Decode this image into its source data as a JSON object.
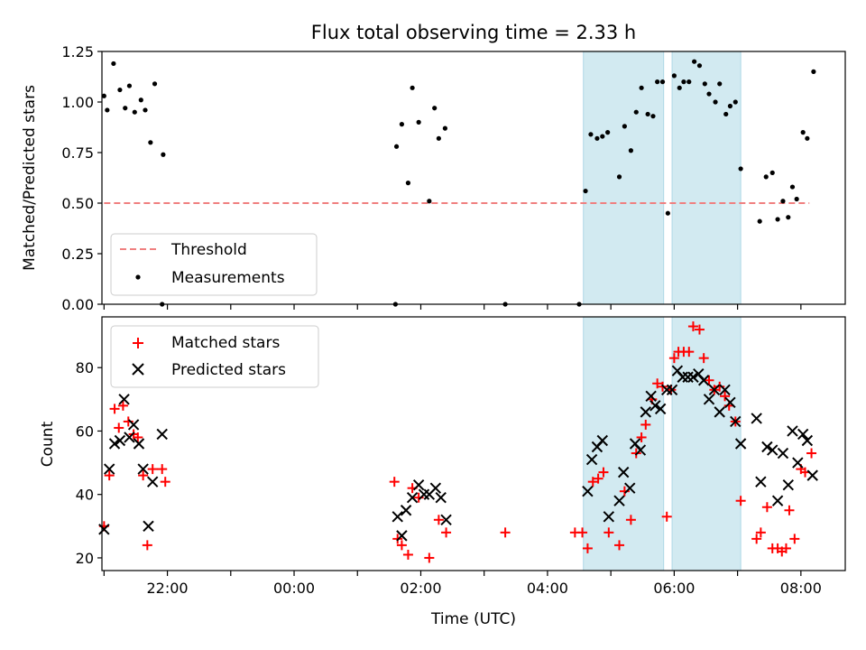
{
  "chart_data": [
    {
      "type": "scatter",
      "title": "Flux total observing time = 2.33 h",
      "xlabel": "",
      "ylabel": "Matched/Predicted stars",
      "xlim": [
        "20:58",
        "08:42"
      ],
      "ylim": [
        0,
        1.25
      ],
      "yticks": [
        0.0,
        0.25,
        0.5,
        0.75,
        1.0,
        1.25
      ],
      "ytick_labels": [
        "0.00",
        "0.25",
        "0.50",
        "0.75",
        "1.00",
        "1.25"
      ],
      "grid": false,
      "legend_position": "lower-left",
      "shaded_intervals": [
        [
          "04:34",
          "05:50"
        ],
        [
          "05:58",
          "07:03"
        ]
      ],
      "threshold_line": {
        "name": "Threshold",
        "y": 0.5,
        "x_start": "21:00",
        "x_end": "08:08",
        "color": "#f08080",
        "style": "dashed"
      },
      "series": [
        {
          "name": "Measurements",
          "color": "#000000",
          "points": [
            [
              "21:00",
              1.03
            ],
            [
              "21:03",
              0.96
            ],
            [
              "21:09",
              1.19
            ],
            [
              "21:15",
              1.06
            ],
            [
              "21:20",
              0.97
            ],
            [
              "21:24",
              1.08
            ],
            [
              "21:29",
              0.95
            ],
            [
              "21:35",
              1.01
            ],
            [
              "21:39",
              0.96
            ],
            [
              "21:44",
              0.8
            ],
            [
              "21:48",
              1.09
            ],
            [
              "21:56",
              0.74
            ],
            [
              "21:55",
              0.0
            ],
            [
              "01:36",
              0.0
            ],
            [
              "01:37",
              0.78
            ],
            [
              "01:42",
              0.89
            ],
            [
              "01:48",
              0.6
            ],
            [
              "01:52",
              1.07
            ],
            [
              "01:58",
              0.9
            ],
            [
              "02:08",
              0.51
            ],
            [
              "02:13",
              0.97
            ],
            [
              "02:17",
              0.82
            ],
            [
              "02:23",
              0.87
            ],
            [
              "03:20",
              0.0
            ],
            [
              "04:30",
              0.0
            ],
            [
              "04:36",
              0.56
            ],
            [
              "04:41",
              0.84
            ],
            [
              "04:47",
              0.82
            ],
            [
              "04:52",
              0.83
            ],
            [
              "04:57",
              0.85
            ],
            [
              "05:08",
              0.63
            ],
            [
              "05:13",
              0.88
            ],
            [
              "05:19",
              0.76
            ],
            [
              "05:24",
              0.95
            ],
            [
              "05:29",
              1.07
            ],
            [
              "05:35",
              0.94
            ],
            [
              "05:40",
              0.93
            ],
            [
              "05:44",
              1.1
            ],
            [
              "05:49",
              1.1
            ],
            [
              "05:54",
              0.45
            ],
            [
              "06:00",
              1.13
            ],
            [
              "06:05",
              1.07
            ],
            [
              "06:09",
              1.1
            ],
            [
              "06:14",
              1.1
            ],
            [
              "06:19",
              1.2
            ],
            [
              "06:24",
              1.18
            ],
            [
              "06:29",
              1.09
            ],
            [
              "06:33",
              1.04
            ],
            [
              "06:39",
              1.0
            ],
            [
              "06:43",
              1.09
            ],
            [
              "06:49",
              0.94
            ],
            [
              "06:53",
              0.98
            ],
            [
              "06:58",
              1.0
            ],
            [
              "07:03",
              0.67
            ],
            [
              "07:21",
              0.41
            ],
            [
              "07:27",
              0.63
            ],
            [
              "07:33",
              0.65
            ],
            [
              "07:38",
              0.42
            ],
            [
              "07:43",
              0.51
            ],
            [
              "07:48",
              0.43
            ],
            [
              "07:52",
              0.58
            ],
            [
              "07:56",
              0.52
            ],
            [
              "08:02",
              0.85
            ],
            [
              "08:06",
              0.82
            ],
            [
              "08:12",
              1.15
            ]
          ]
        }
      ]
    },
    {
      "type": "scatter",
      "title": "",
      "xlabel": "Time (UTC)",
      "ylabel": "Count",
      "xlim": [
        "20:58",
        "08:42"
      ],
      "ylim": [
        16,
        96
      ],
      "xticks": [
        "22:00",
        "00:00",
        "02:00",
        "04:00",
        "06:00",
        "08:00"
      ],
      "yticks": [
        20,
        40,
        60,
        80
      ],
      "grid": false,
      "legend_position": "upper-left",
      "shaded_intervals": [
        [
          "04:34",
          "05:50"
        ],
        [
          "05:58",
          "07:03"
        ]
      ],
      "series": [
        {
          "name": "Matched stars",
          "color": "#ff0000",
          "marker": "plus",
          "points": [
            [
              "21:00",
              30
            ],
            [
              "21:05",
              46
            ],
            [
              "21:10",
              67
            ],
            [
              "21:14",
              61
            ],
            [
              "21:18",
              68
            ],
            [
              "21:23",
              63
            ],
            [
              "21:28",
              59
            ],
            [
              "21:32",
              58
            ],
            [
              "21:37",
              46
            ],
            [
              "21:41",
              24
            ],
            [
              "21:46",
              48
            ],
            [
              "21:55",
              48
            ],
            [
              "21:58",
              44
            ],
            [
              "01:35",
              44
            ],
            [
              "01:38",
              26
            ],
            [
              "01:42",
              24
            ],
            [
              "01:48",
              21
            ],
            [
              "01:52",
              42
            ],
            [
              "01:58",
              39
            ],
            [
              "02:08",
              20
            ],
            [
              "02:17",
              32
            ],
            [
              "02:24",
              28
            ],
            [
              "03:20",
              28
            ],
            [
              "04:26",
              28
            ],
            [
              "04:33",
              28
            ],
            [
              "04:38",
              23
            ],
            [
              "04:43",
              44
            ],
            [
              "04:48",
              45
            ],
            [
              "04:53",
              47
            ],
            [
              "04:58",
              28
            ],
            [
              "05:08",
              24
            ],
            [
              "05:13",
              41
            ],
            [
              "05:19",
              32
            ],
            [
              "05:24",
              53
            ],
            [
              "05:29",
              58
            ],
            [
              "05:33",
              62
            ],
            [
              "05:39",
              70
            ],
            [
              "05:44",
              75
            ],
            [
              "05:49",
              74
            ],
            [
              "05:53",
              33
            ],
            [
              "05:57",
              73
            ],
            [
              "06:00",
              83
            ],
            [
              "06:04",
              85
            ],
            [
              "06:09",
              85
            ],
            [
              "06:14",
              85
            ],
            [
              "06:18",
              93
            ],
            [
              "06:24",
              92
            ],
            [
              "06:28",
              83
            ],
            [
              "06:33",
              76
            ],
            [
              "06:38",
              73
            ],
            [
              "06:43",
              74
            ],
            [
              "06:48",
              71
            ],
            [
              "06:52",
              68
            ],
            [
              "06:58",
              63
            ],
            [
              "07:03",
              38
            ],
            [
              "07:18",
              26
            ],
            [
              "07:22",
              28
            ],
            [
              "07:28",
              36
            ],
            [
              "07:33",
              23
            ],
            [
              "07:38",
              23
            ],
            [
              "07:42",
              22
            ],
            [
              "07:46",
              23
            ],
            [
              "07:49",
              35
            ],
            [
              "07:54",
              26
            ],
            [
              "08:00",
              48
            ],
            [
              "08:04",
              47
            ],
            [
              "08:10",
              53
            ]
          ]
        },
        {
          "name": "Predicted stars",
          "color": "#000000",
          "marker": "x",
          "points": [
            [
              "21:00",
              29
            ],
            [
              "21:05",
              48
            ],
            [
              "21:10",
              56
            ],
            [
              "21:15",
              57
            ],
            [
              "21:19",
              70
            ],
            [
              "21:24",
              58
            ],
            [
              "21:28",
              62
            ],
            [
              "21:33",
              56
            ],
            [
              "21:37",
              48
            ],
            [
              "21:42",
              30
            ],
            [
              "21:46",
              44
            ],
            [
              "21:55",
              59
            ],
            [
              "01:38",
              33
            ],
            [
              "01:42",
              27
            ],
            [
              "01:46",
              35
            ],
            [
              "01:52",
              39
            ],
            [
              "01:58",
              43
            ],
            [
              "02:03",
              40
            ],
            [
              "02:08",
              40
            ],
            [
              "02:14",
              42
            ],
            [
              "02:19",
              39
            ],
            [
              "02:24",
              32
            ],
            [
              "04:38",
              41
            ],
            [
              "04:42",
              51
            ],
            [
              "04:47",
              55
            ],
            [
              "04:52",
              57
            ],
            [
              "04:58",
              33
            ],
            [
              "05:08",
              38
            ],
            [
              "05:12",
              47
            ],
            [
              "05:18",
              42
            ],
            [
              "05:23",
              56
            ],
            [
              "05:28",
              54
            ],
            [
              "05:33",
              66
            ],
            [
              "05:38",
              71
            ],
            [
              "05:42",
              68
            ],
            [
              "05:47",
              67
            ],
            [
              "05:53",
              73
            ],
            [
              "05:58",
              73
            ],
            [
              "06:03",
              79
            ],
            [
              "06:08",
              77
            ],
            [
              "06:13",
              77
            ],
            [
              "06:18",
              77
            ],
            [
              "06:23",
              78
            ],
            [
              "06:28",
              76
            ],
            [
              "06:33",
              70
            ],
            [
              "06:38",
              73
            ],
            [
              "06:43",
              66
            ],
            [
              "06:48",
              73
            ],
            [
              "06:53",
              69
            ],
            [
              "06:58",
              63
            ],
            [
              "07:03",
              56
            ],
            [
              "07:18",
              64
            ],
            [
              "07:22",
              44
            ],
            [
              "07:28",
              55
            ],
            [
              "07:33",
              54
            ],
            [
              "07:38",
              38
            ],
            [
              "07:43",
              53
            ],
            [
              "07:48",
              43
            ],
            [
              "07:52",
              60
            ],
            [
              "07:57",
              50
            ],
            [
              "08:02",
              59
            ],
            [
              "08:06",
              57
            ],
            [
              "08:11",
              46
            ]
          ]
        }
      ]
    }
  ]
}
